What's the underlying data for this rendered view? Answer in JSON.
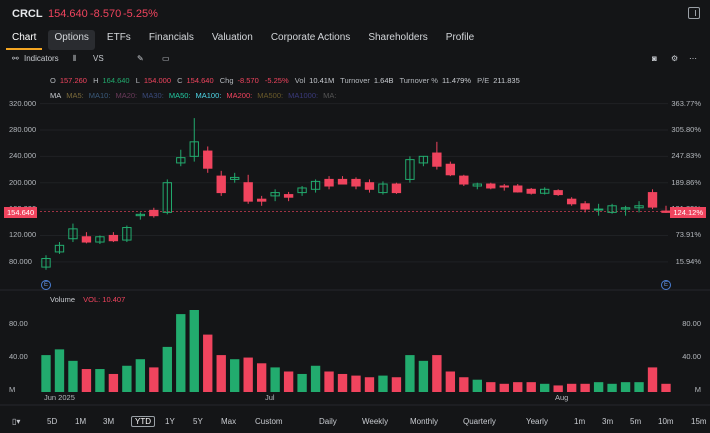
{
  "header": {
    "ticker": "CRCL",
    "price": "154.640",
    "change": "-8.570",
    "change_pct": "-5.25%"
  },
  "tabs": [
    {
      "label": "Chart",
      "active": true
    },
    {
      "label": "Options"
    },
    {
      "label": "ETFs"
    },
    {
      "label": "Financials"
    },
    {
      "label": "Valuation"
    },
    {
      "label": "Corporate Actions"
    },
    {
      "label": "Shareholders"
    },
    {
      "label": "Profile"
    }
  ],
  "toolbar": {
    "indicators_label": "Indicators",
    "vs_label": "VS"
  },
  "stats": {
    "open_label": "O",
    "open": "157.260",
    "high_label": "H",
    "high": "164.640",
    "low_label": "L",
    "low": "154.000",
    "close_label": "C",
    "close": "154.640",
    "chg_label": "Chg",
    "chg": "-8.570",
    "chg_pct": "-5.25%",
    "vol_label": "Vol",
    "vol": "10.41M",
    "turnover_label": "Turnover",
    "turnover": "1.64B",
    "turnover_pct_label": "Turnover %",
    "turnover_pct": "11.479%",
    "pe_label": "P/E",
    "pe": "211.835"
  },
  "ma_legend": [
    "MA",
    "MA5:",
    "MA10:",
    "MA20:",
    "MA30:",
    "MA50:",
    "MA100:",
    "MA200:",
    "MA500:",
    "MA1000:",
    "MA:"
  ],
  "ma_colors": [
    "#c9ccd1",
    "#7b6a3a",
    "#3a5a7b",
    "#6a3a5a",
    "#3a4a7b",
    "#22c7a0",
    "#4fd7e8",
    "#f0445e",
    "#6a5a2a",
    "#3a3a7b",
    "#555"
  ],
  "left_axis": [
    "320.000",
    "280.000",
    "240.000",
    "200.000",
    "160.000",
    "120.000",
    "80.000"
  ],
  "right_axis": [
    "363.77%",
    "305.80%",
    "247.83%",
    "189.86%",
    "131.89%",
    "73.91%",
    "15.94%"
  ],
  "price_tag": "154.640",
  "pct_tag": "124.12%",
  "volume": {
    "label": "Volume",
    "vol_label": "VOL: 10.407",
    "left_axis": [
      "80.00",
      "40.00",
      "M"
    ],
    "right_axis": [
      "80.00",
      "40.00",
      "M"
    ]
  },
  "x_labels": [
    "Jun 2025",
    "Jul",
    "Aug"
  ],
  "event_marker": "E",
  "range_buttons": [
    "5D",
    "1M",
    "3M",
    "YTD",
    "1Y",
    "5Y",
    "Max",
    "Custom"
  ],
  "period_buttons": [
    "Daily",
    "Weekly",
    "Monthly",
    "Quarterly",
    "Yearly",
    "1m",
    "3m",
    "5m",
    "10m",
    "15m"
  ],
  "active_range": "YTD",
  "colors": {
    "up": "#22ab6e",
    "down": "#f0445e",
    "accent": "#f5a623"
  },
  "chart_data": {
    "type": "candlestick",
    "title": "CRCL",
    "ylim": [
      60,
      330
    ],
    "candles": [
      {
        "o": 72,
        "h": 90,
        "l": 68,
        "c": 85
      },
      {
        "o": 95,
        "h": 110,
        "l": 92,
        "c": 105
      },
      {
        "o": 115,
        "h": 138,
        "l": 110,
        "c": 130
      },
      {
        "o": 118,
        "h": 125,
        "l": 108,
        "c": 110
      },
      {
        "o": 110,
        "h": 120,
        "l": 107,
        "c": 118
      },
      {
        "o": 120,
        "h": 125,
        "l": 110,
        "c": 112
      },
      {
        "o": 113,
        "h": 135,
        "l": 110,
        "c": 132
      },
      {
        "o": 150,
        "h": 155,
        "l": 144,
        "c": 152
      },
      {
        "o": 158,
        "h": 162,
        "l": 147,
        "c": 150
      },
      {
        "o": 155,
        "h": 205,
        "l": 152,
        "c": 200
      },
      {
        "o": 230,
        "h": 250,
        "l": 225,
        "c": 238
      },
      {
        "o": 240,
        "h": 298,
        "l": 232,
        "c": 262
      },
      {
        "o": 248,
        "h": 255,
        "l": 215,
        "c": 222
      },
      {
        "o": 210,
        "h": 218,
        "l": 180,
        "c": 185
      },
      {
        "o": 205,
        "h": 215,
        "l": 200,
        "c": 208
      },
      {
        "o": 200,
        "h": 212,
        "l": 168,
        "c": 172
      },
      {
        "o": 175,
        "h": 180,
        "l": 165,
        "c": 172
      },
      {
        "o": 180,
        "h": 190,
        "l": 172,
        "c": 185
      },
      {
        "o": 182,
        "h": 186,
        "l": 172,
        "c": 178
      },
      {
        "o": 185,
        "h": 195,
        "l": 180,
        "c": 192
      },
      {
        "o": 190,
        "h": 205,
        "l": 185,
        "c": 202
      },
      {
        "o": 205,
        "h": 210,
        "l": 190,
        "c": 195
      },
      {
        "o": 205,
        "h": 210,
        "l": 198,
        "c": 198
      },
      {
        "o": 205,
        "h": 208,
        "l": 190,
        "c": 195
      },
      {
        "o": 200,
        "h": 205,
        "l": 185,
        "c": 190
      },
      {
        "o": 185,
        "h": 202,
        "l": 182,
        "c": 198
      },
      {
        "o": 198,
        "h": 200,
        "l": 183,
        "c": 185
      },
      {
        "o": 205,
        "h": 240,
        "l": 200,
        "c": 235
      },
      {
        "o": 230,
        "h": 240,
        "l": 225,
        "c": 240
      },
      {
        "o": 245,
        "h": 262,
        "l": 220,
        "c": 225
      },
      {
        "o": 228,
        "h": 232,
        "l": 210,
        "c": 212
      },
      {
        "o": 210,
        "h": 212,
        "l": 195,
        "c": 198
      },
      {
        "o": 195,
        "h": 200,
        "l": 190,
        "c": 198
      },
      {
        "o": 198,
        "h": 200,
        "l": 190,
        "c": 192
      },
      {
        "o": 195,
        "h": 198,
        "l": 188,
        "c": 194
      },
      {
        "o": 195,
        "h": 198,
        "l": 185,
        "c": 186
      },
      {
        "o": 190,
        "h": 192,
        "l": 182,
        "c": 184
      },
      {
        "o": 184,
        "h": 193,
        "l": 182,
        "c": 190
      },
      {
        "o": 188,
        "h": 190,
        "l": 180,
        "c": 182
      },
      {
        "o": 175,
        "h": 178,
        "l": 165,
        "c": 168
      },
      {
        "o": 168,
        "h": 172,
        "l": 155,
        "c": 160
      },
      {
        "o": 160,
        "h": 168,
        "l": 150,
        "c": 160
      },
      {
        "o": 155,
        "h": 168,
        "l": 153,
        "c": 165
      },
      {
        "o": 160,
        "h": 165,
        "l": 150,
        "c": 162
      },
      {
        "o": 162,
        "h": 172,
        "l": 155,
        "c": 165
      },
      {
        "o": 185,
        "h": 190,
        "l": 160,
        "c": 163
      },
      {
        "o": 157,
        "h": 165,
        "l": 154,
        "c": 155
      }
    ],
    "volumes": [
      45,
      52,
      38,
      28,
      28,
      22,
      32,
      40,
      30,
      55,
      95,
      100,
      70,
      45,
      40,
      42,
      35,
      30,
      25,
      22,
      32,
      25,
      22,
      20,
      18,
      20,
      18,
      45,
      38,
      45,
      25,
      18,
      15,
      12,
      10,
      12,
      12,
      10,
      8,
      10,
      10,
      12,
      10,
      12,
      12,
      30,
      10
    ]
  }
}
